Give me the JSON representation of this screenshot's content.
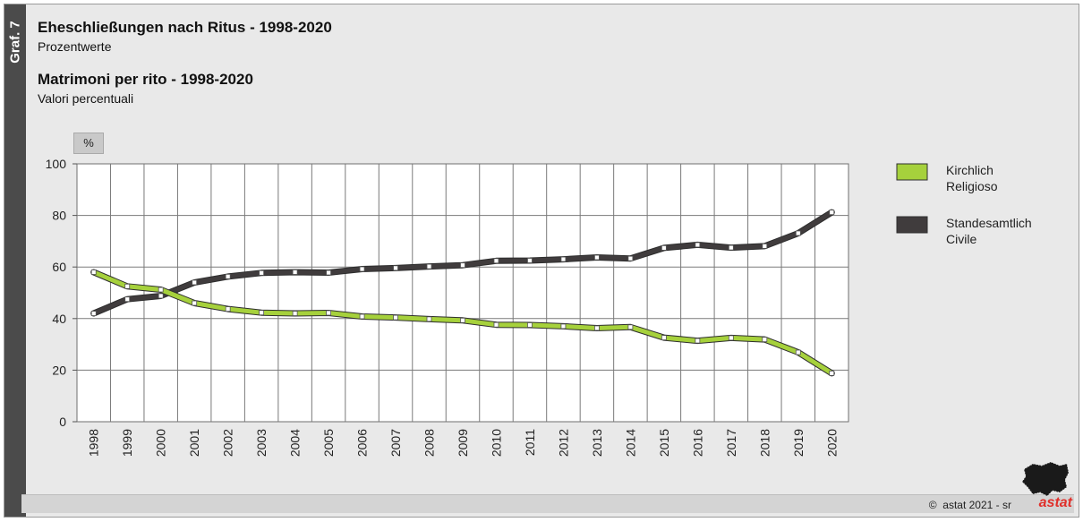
{
  "side_label": "Graf. 7",
  "titles": {
    "title_de": "Eheschließungen nach Ritus - 1998-2020",
    "subtitle_de": "Prozentwerte",
    "title_it": "Matrimoni per rito - 1998-2020",
    "subtitle_it": "Valori percentuali"
  },
  "unit_label": "%",
  "footer": {
    "copyright_symbol": "©",
    "credit": "astat 2021 - sr",
    "brand": "astat"
  },
  "chart_data": {
    "type": "line",
    "x": [
      "1998",
      "1999",
      "2000",
      "2001",
      "2002",
      "2003",
      "2004",
      "2005",
      "2006",
      "2007",
      "2008",
      "2009",
      "2010",
      "2011",
      "2012",
      "2013",
      "2014",
      "2015",
      "2016",
      "2017",
      "2018",
      "2019",
      "2020"
    ],
    "ylim": [
      0,
      100
    ],
    "yticks": [
      0,
      20,
      40,
      60,
      80,
      100
    ],
    "grid": true,
    "legend_position": "right",
    "series": [
      {
        "name": "Kirchlich",
        "name_it": "Religioso",
        "color": "#a6d13c",
        "values": [
          58,
          52.5,
          51.2,
          46,
          43.7,
          42.3,
          42,
          42.2,
          40.8,
          40.4,
          39.8,
          39.3,
          37.6,
          37.5,
          37,
          36.3,
          36.7,
          32.6,
          31.4,
          32.5,
          31.9,
          26.9,
          18.8
        ]
      },
      {
        "name": "Standesamtlich",
        "name_it": "Civile",
        "color": "#403c3d",
        "values": [
          42,
          47.5,
          48.8,
          54,
          56.3,
          57.7,
          58,
          57.8,
          59.2,
          59.6,
          60.2,
          60.7,
          62.4,
          62.5,
          63,
          63.7,
          63.3,
          67.4,
          68.6,
          67.5,
          68.1,
          73.1,
          81.2
        ]
      }
    ]
  }
}
